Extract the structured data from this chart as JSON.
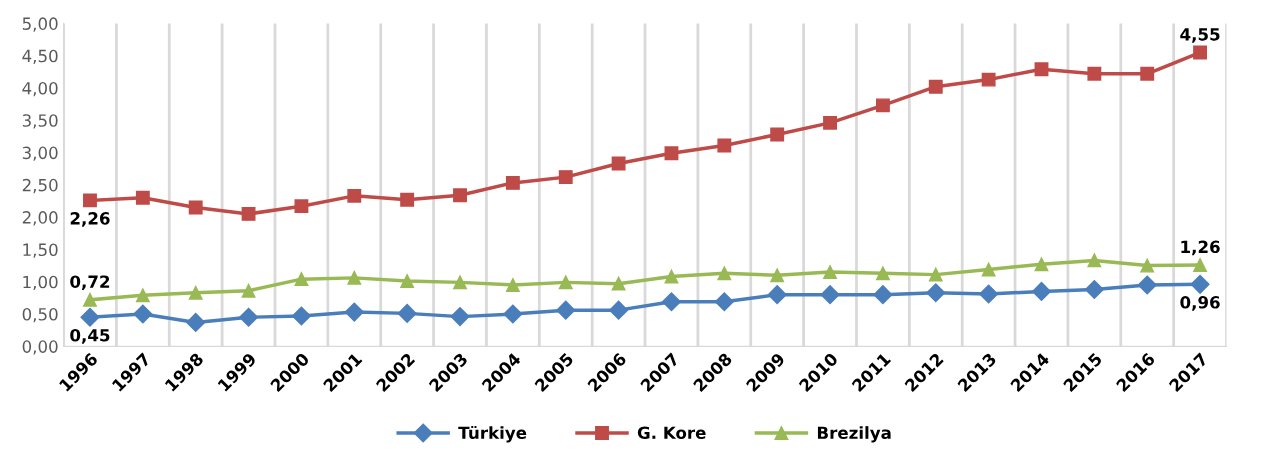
{
  "chart_data": {
    "type": "line",
    "categories": [
      "1996",
      "1997",
      "1998",
      "1999",
      "2000",
      "2001",
      "2002",
      "2003",
      "2004",
      "2005",
      "2006",
      "2007",
      "2008",
      "2009",
      "2010",
      "2011",
      "2012",
      "2013",
      "2014",
      "2015",
      "2016",
      "2017"
    ],
    "series": [
      {
        "name": "Türkiye",
        "color": "#4a7ebb",
        "marker": "diamond",
        "values": [
          0.45,
          0.5,
          0.37,
          0.45,
          0.47,
          0.53,
          0.51,
          0.46,
          0.5,
          0.56,
          0.56,
          0.69,
          0.69,
          0.8,
          0.8,
          0.8,
          0.83,
          0.81,
          0.85,
          0.88,
          0.95,
          0.96
        ],
        "value_labels": [
          "0,45",
          null,
          null,
          null,
          null,
          null,
          null,
          null,
          null,
          null,
          null,
          null,
          null,
          null,
          null,
          null,
          null,
          null,
          null,
          null,
          null,
          "0,96"
        ]
      },
      {
        "name": "G. Kore",
        "color": "#be4b48",
        "marker": "square",
        "values": [
          2.26,
          2.3,
          2.15,
          2.05,
          2.17,
          2.33,
          2.27,
          2.34,
          2.53,
          2.62,
          2.83,
          2.99,
          3.11,
          3.28,
          3.46,
          3.73,
          4.02,
          4.13,
          4.29,
          4.22,
          4.22,
          4.55
        ],
        "value_labels": [
          "2,26",
          null,
          null,
          null,
          null,
          null,
          null,
          null,
          null,
          null,
          null,
          null,
          null,
          null,
          null,
          null,
          null,
          null,
          null,
          null,
          null,
          "4,55"
        ]
      },
      {
        "name": "Brezilya",
        "color": "#98b954",
        "marker": "triangle",
        "values": [
          0.72,
          0.79,
          0.83,
          0.86,
          1.04,
          1.06,
          1.01,
          0.99,
          0.95,
          0.99,
          0.97,
          1.08,
          1.13,
          1.1,
          1.15,
          1.13,
          1.11,
          1.19,
          1.27,
          1.33,
          1.25,
          1.26
        ],
        "value_labels": [
          "0,72",
          null,
          null,
          null,
          null,
          null,
          null,
          null,
          null,
          null,
          null,
          null,
          null,
          null,
          null,
          null,
          null,
          null,
          null,
          null,
          null,
          "1,26"
        ]
      }
    ],
    "ylim": [
      0,
      5
    ],
    "yticks": [
      {
        "value": 0,
        "label": "0,00"
      },
      {
        "value": 0.5,
        "label": "0,50"
      },
      {
        "value": 1,
        "label": "1,00"
      },
      {
        "value": 1.5,
        "label": "1,50"
      },
      {
        "value": 2,
        "label": "2,00"
      },
      {
        "value": 2.5,
        "label": "2,50"
      },
      {
        "value": 3,
        "label": "3,00"
      },
      {
        "value": 3.5,
        "label": "3,50"
      },
      {
        "value": 4,
        "label": "4,00"
      },
      {
        "value": 4.5,
        "label": "4,50"
      },
      {
        "value": 5,
        "label": "5,00"
      }
    ],
    "grid": "x",
    "legend": "bottom",
    "line_style": "solid"
  }
}
